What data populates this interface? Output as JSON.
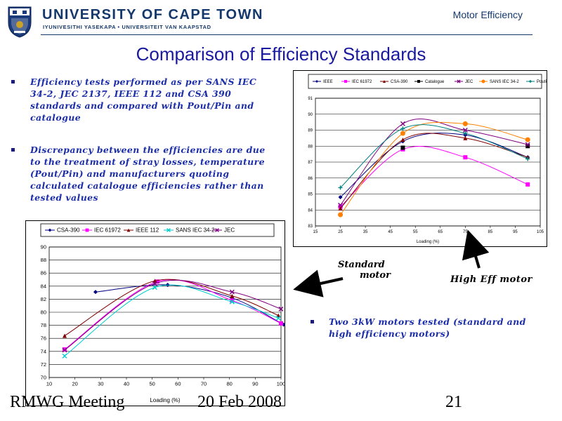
{
  "header": {
    "university": "UNIVERSITY OF CAPE TOWN",
    "university_sub": "IYUNIVESITHI YASEKAPA • UNIVERSITEIT VAN KAAPSTAD",
    "course": "Motor Efficiency"
  },
  "slide": {
    "title": "Comparison of Efficiency Standards",
    "bullets": [
      "Efficiency tests performed as per SANS IEC 34-2, JEC 2137, IEEE 112 and CSA 390 standards and compared with Pout/Pin and catalogue",
      "Discrepancy between the efficiencies are due to the treatment of stray losses, temperature (Pout/Pin) and manufacturers quoting calculated catalogue efficiencies rather than tested values"
    ],
    "note": "Two 3kW motors tested (standard and high efficiency motors)",
    "label_standard_line1": "Standard",
    "label_standard_line2": "motor",
    "label_high": "High Eff motor"
  },
  "footer": {
    "left": "RMWG Meeting",
    "mid": "20 Feb 2008",
    "right": "21"
  },
  "colors": {
    "brand_blue": "#14386b",
    "title_blue": "#1a1a9e",
    "bullet_blue": "#1c2ea8"
  },
  "chart_data": [
    {
      "type": "line",
      "xlabel": "Loading (%)",
      "ylabel": "",
      "xticks": [
        "15",
        "25",
        "35",
        "45",
        "55",
        "65",
        "75",
        "85",
        "95",
        "105"
      ],
      "yticks": [
        "83",
        "84",
        "85",
        "86",
        "87",
        "88",
        "89",
        "90",
        "91"
      ],
      "xlim": [
        15,
        105
      ],
      "ylim": [
        83,
        91
      ],
      "legend": "top",
      "grid": true,
      "series": [
        {
          "name": "IEEE",
          "color": "#000080",
          "marker": "diamond",
          "x": [
            25,
            50,
            75,
            100
          ],
          "y": [
            84.8,
            88.3,
            88.7,
            87.3
          ]
        },
        {
          "name": "IEC 61972",
          "color": "#ff00ff",
          "marker": "square",
          "x": [
            25,
            50,
            75,
            100
          ],
          "y": [
            84.2,
            87.8,
            87.3,
            85.6
          ]
        },
        {
          "name": "CSA-390",
          "color": "#800000",
          "marker": "triangle",
          "x": [
            25,
            50,
            75,
            100
          ],
          "y": [
            84.1,
            88.4,
            88.5,
            87.3
          ]
        },
        {
          "name": "Catalogue",
          "color": "#000000",
          "marker": "square",
          "x": [
            50,
            100
          ],
          "y": [
            87.9,
            88.0
          ]
        },
        {
          "name": "JEC",
          "color": "#800080",
          "marker": "x",
          "x": [
            25,
            50,
            75,
            100
          ],
          "y": [
            84.3,
            89.4,
            89.0,
            88.1
          ]
        },
        {
          "name": "SANS IEC 34-2",
          "color": "#ff8000",
          "marker": "circle",
          "x": [
            25,
            50,
            75,
            100
          ],
          "y": [
            83.7,
            88.8,
            89.4,
            88.4
          ]
        },
        {
          "name": "PoutPin",
          "color": "#008080",
          "marker": "plus",
          "x": [
            25,
            50,
            75,
            100
          ],
          "y": [
            85.4,
            89.1,
            88.8,
            87.2
          ]
        }
      ]
    },
    {
      "type": "line",
      "xlabel": "Loading (%)",
      "ylabel": "",
      "xticks": [
        "10",
        "20",
        "30",
        "40",
        "50",
        "60",
        "70",
        "80",
        "90",
        "100"
      ],
      "yticks": [
        "70",
        "72",
        "74",
        "76",
        "78",
        "80",
        "82",
        "84",
        "86",
        "88",
        "90"
      ],
      "xlim": [
        10,
        100
      ],
      "ylim": [
        70,
        90
      ],
      "legend": "top",
      "grid": true,
      "series": [
        {
          "name": "CSA-390",
          "color": "#000080",
          "marker": "diamond",
          "x": [
            28,
            56,
            81,
            101
          ],
          "y": [
            83.1,
            84.2,
            82.2,
            78.1
          ]
        },
        {
          "name": "IEC 61972",
          "color": "#ff00ff",
          "marker": "square",
          "x": [
            16,
            52,
            81,
            100
          ],
          "y": [
            74.3,
            84.7,
            81.8,
            78.3
          ]
        },
        {
          "name": "IEEE 112",
          "color": "#800000",
          "marker": "triangle",
          "x": [
            16,
            51,
            81,
            99
          ],
          "y": [
            76.4,
            84.8,
            82.5,
            79.5
          ]
        },
        {
          "name": "SANS IEC 34-2",
          "color": "#00cccc",
          "marker": "x",
          "x": [
            16,
            51,
            81,
            99
          ],
          "y": [
            73.3,
            83.8,
            81.6,
            79.1
          ]
        },
        {
          "name": "JEC",
          "color": "#800080",
          "marker": "x",
          "x": [
            16,
            51,
            81,
            100
          ],
          "y": [
            74.2,
            84.4,
            83.1,
            80.5
          ]
        }
      ]
    }
  ]
}
